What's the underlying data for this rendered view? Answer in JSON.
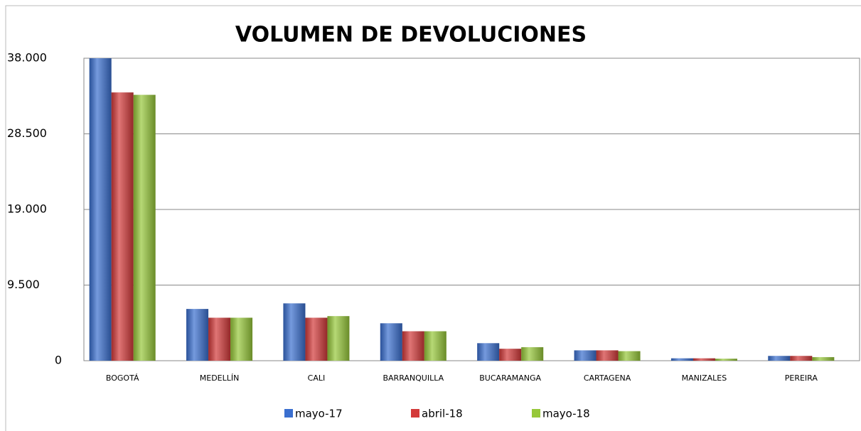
{
  "chart_data": {
    "type": "bar",
    "title": "VOLUMEN DE DEVOLUCIONES",
    "categories": [
      "BOGOTÁ",
      "MEDELLÍN",
      "CALI",
      "BARRANQUILLA",
      "BUCARAMANGA",
      "CARTAGENA",
      "MANIZALES",
      "PEREIRA"
    ],
    "series": [
      {
        "name": "mayo-17",
        "color": "#3a6fcf",
        "values": [
          38000,
          6500,
          7200,
          4700,
          2200,
          1300,
          300,
          600
        ]
      },
      {
        "name": "abril-18",
        "color": "#d33a3a",
        "values": [
          33700,
          5400,
          5400,
          3700,
          1500,
          1300,
          300,
          600
        ]
      },
      {
        "name": "mayo-18",
        "color": "#97c83a",
        "values": [
          33400,
          5400,
          5600,
          3700,
          1700,
          1200,
          250,
          450
        ]
      }
    ],
    "ylim": [
      0,
      38000
    ],
    "yticks": [
      0,
      {
        "value": 9500,
        "label": "9.500"
      },
      {
        "value": 19000,
        "label": "19.000"
      },
      {
        "value": 28500,
        "label": "28.500"
      },
      {
        "value": 38000,
        "label": "38.000"
      }
    ],
    "grid": true,
    "legend": "bottom"
  }
}
